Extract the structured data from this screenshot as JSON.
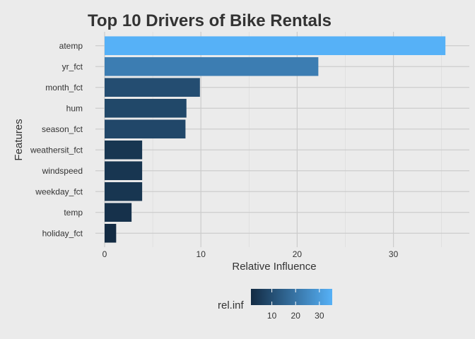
{
  "chart_data": {
    "type": "bar",
    "orientation": "horizontal",
    "title": "Top 10 Drivers of Bike Rentals",
    "xlabel": "Relative Influence",
    "ylabel": "Features",
    "xlim": [
      0,
      36
    ],
    "x_ticks": [
      0,
      10,
      20,
      30
    ],
    "grid": true,
    "categories": [
      "atemp",
      "yr_fct",
      "month_fct",
      "hum",
      "season_fct",
      "weathersit_fct",
      "windspeed",
      "weekday_fct",
      "temp",
      "holiday_fct"
    ],
    "values": [
      35.4,
      22.2,
      9.9,
      8.5,
      8.4,
      3.9,
      3.9,
      3.9,
      2.8,
      1.2
    ],
    "fill_scale": {
      "variable": "rel.inf",
      "low_color": "#132b43",
      "high_color": "#56b1f7",
      "range": [
        1.2,
        35.4
      ]
    },
    "legend": {
      "title": "rel.inf",
      "position": "bottom",
      "ticks": [
        10,
        20,
        30
      ]
    }
  }
}
